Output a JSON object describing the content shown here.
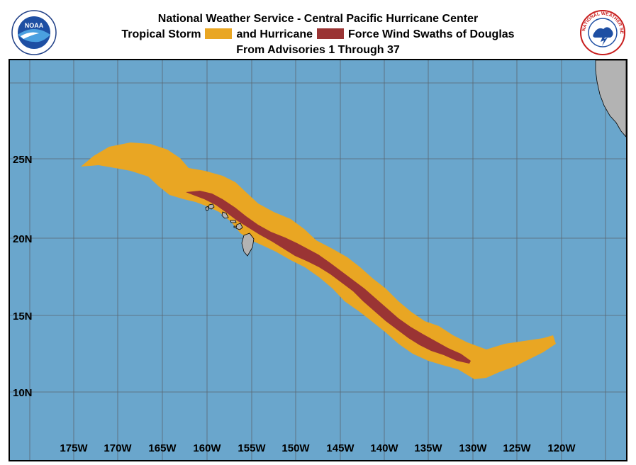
{
  "header": {
    "line1": "National Weather Service - Central Pacific Hurricane Center",
    "line2_a": "Tropical Storm",
    "line2_b": "and Hurricane",
    "line2_c": "Force Wind Swaths of Douglas",
    "line3": "From Advisories 1 Through 37"
  },
  "logos": {
    "left_text": "NOAA",
    "right_text": "NATIONAL WEATHER SERVICE"
  },
  "colors": {
    "ocean": "#6aa6cc",
    "tropical_storm": "#e9a623",
    "hurricane": "#9a3434",
    "land": "#b3b3b3"
  },
  "axes": {
    "lon_labels": [
      "175W",
      "170W",
      "165W",
      "160W",
      "155W",
      "150W",
      "145W",
      "140W",
      "135W",
      "130W",
      "125W",
      "120W"
    ],
    "lat_labels": [
      "25N",
      "20N",
      "15N",
      "10N"
    ]
  }
}
